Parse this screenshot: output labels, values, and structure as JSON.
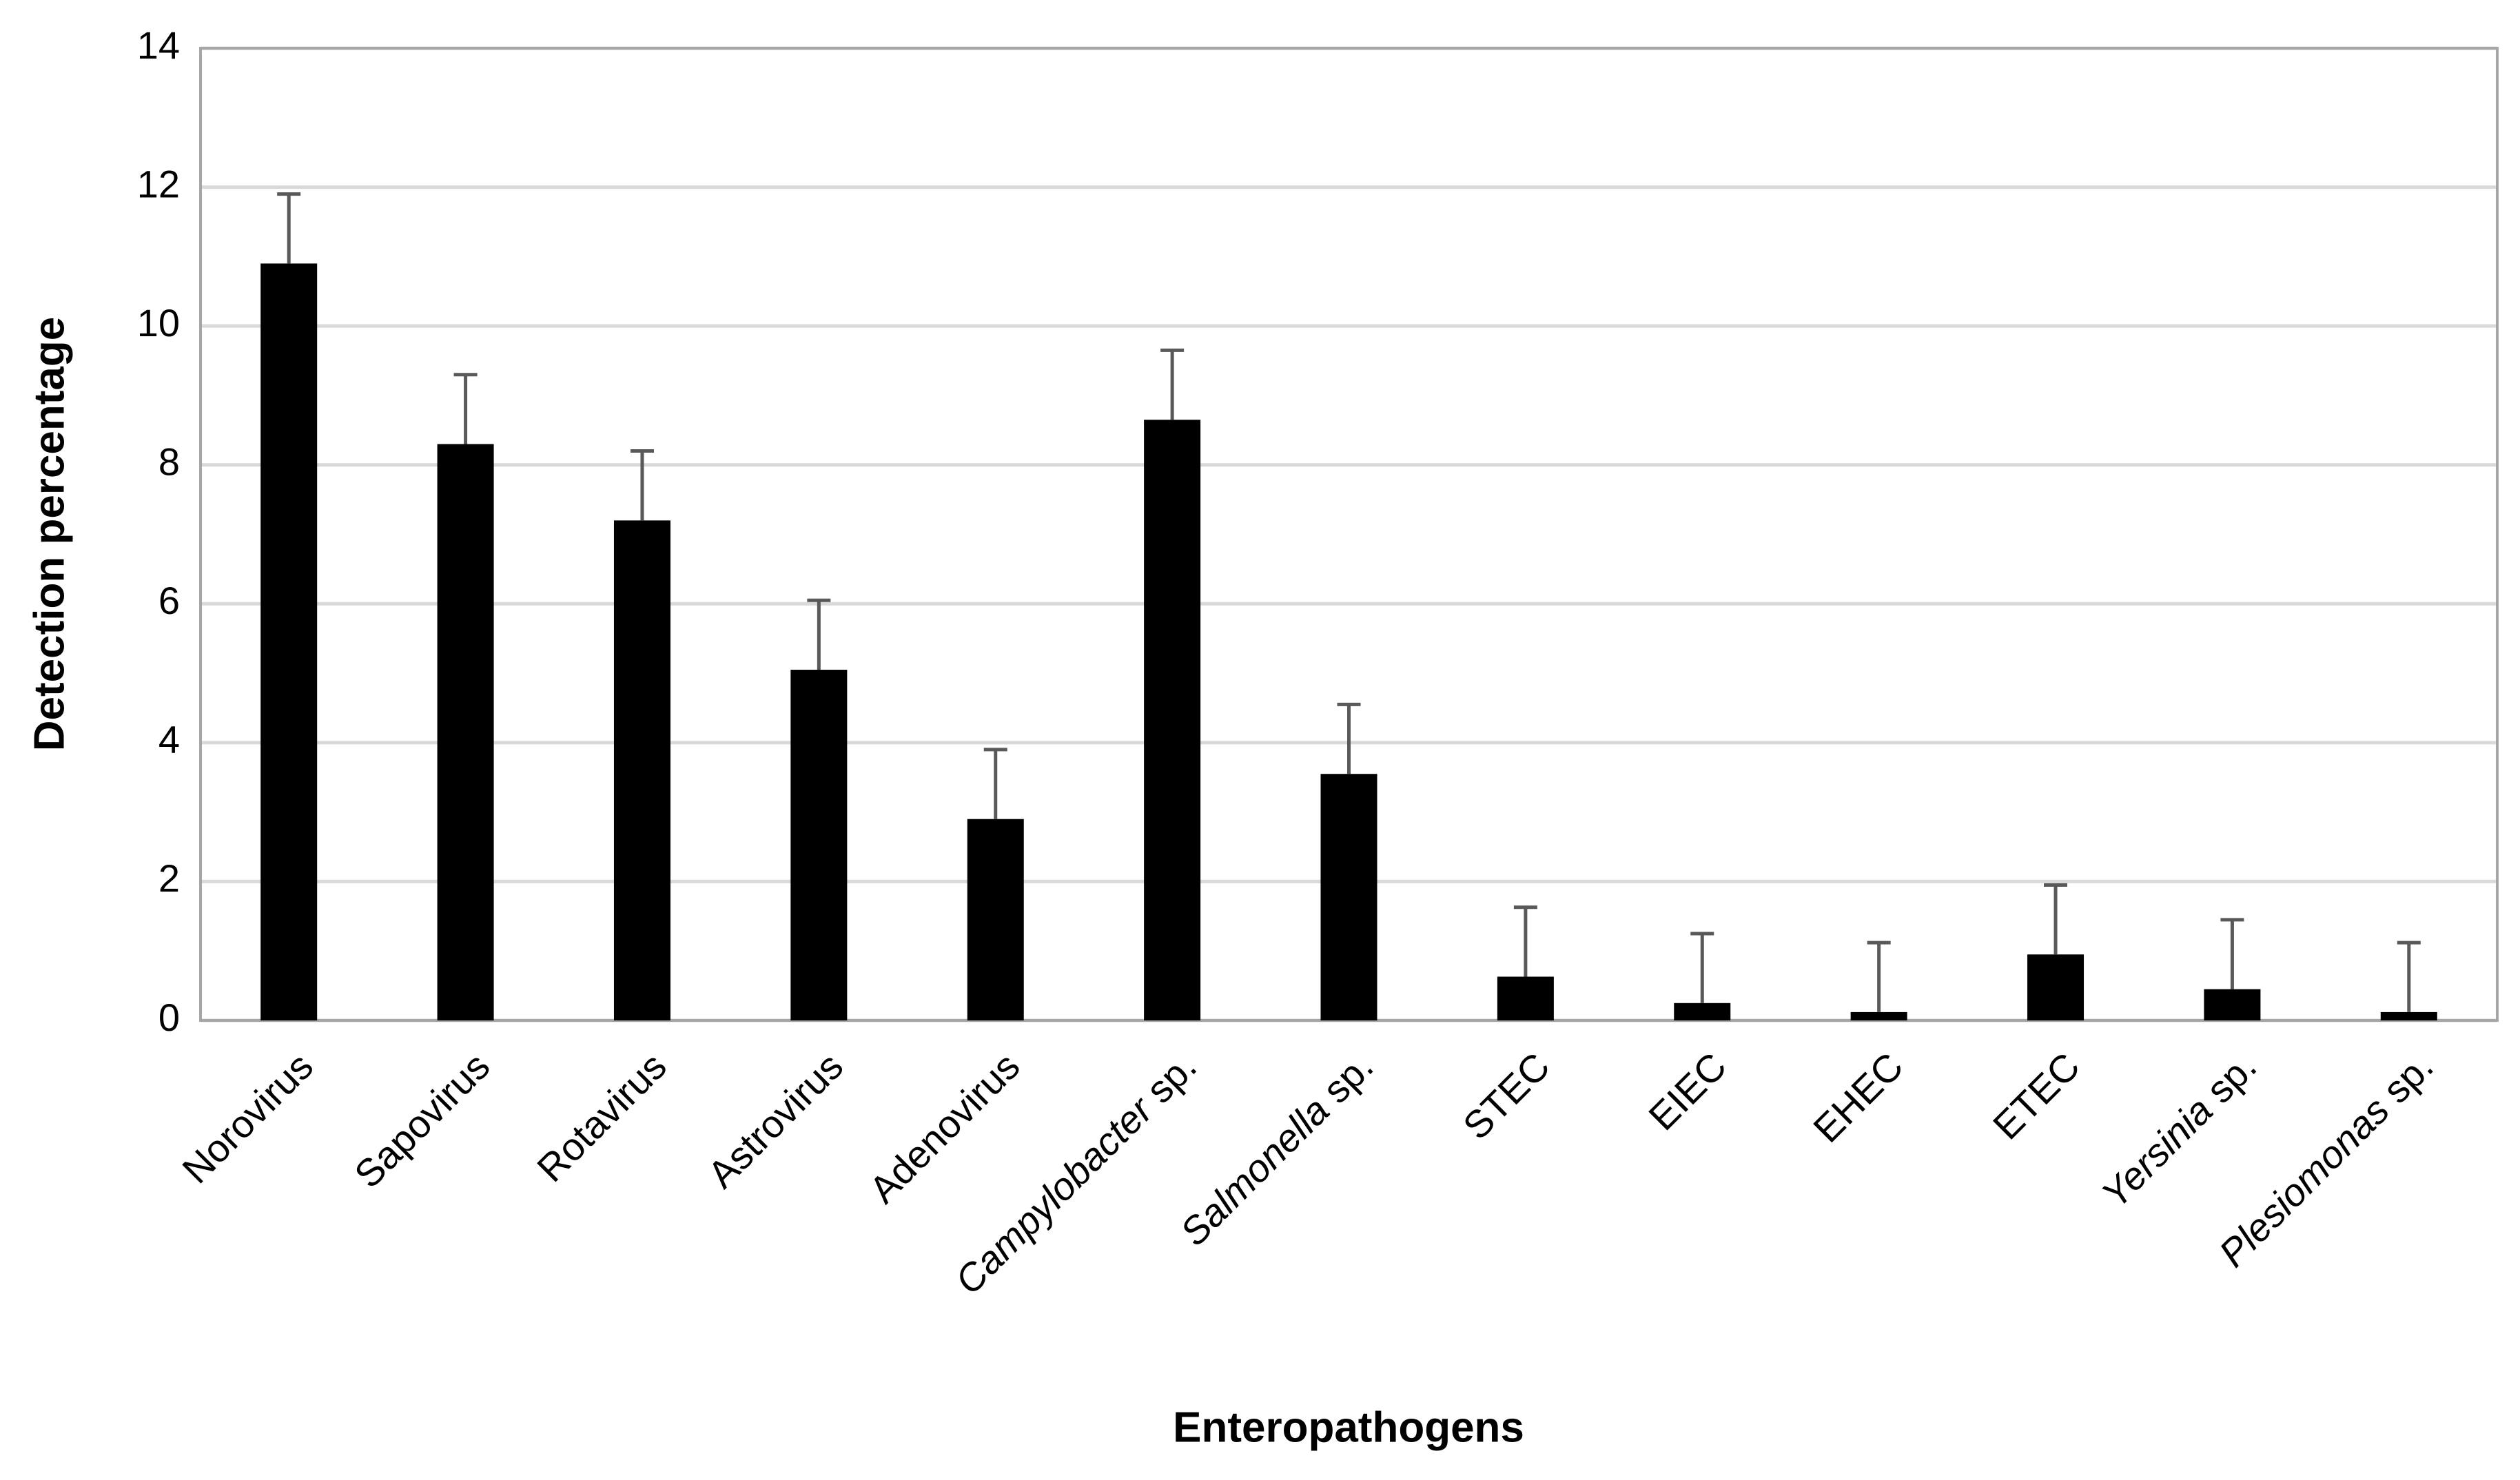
{
  "chart_data": {
    "type": "bar",
    "categories": [
      "Norovirus",
      "Sapovirus",
      "Rotavirus",
      "Astrovirus",
      "Adenovirus",
      "Campylobacter sp.",
      "Salmonella sp.",
      "STEC",
      "EIEC",
      "EHEC",
      "ETEC",
      "Yersinia sp.",
      "Plesiomonas sp."
    ],
    "values": [
      10.9,
      8.3,
      7.2,
      5.05,
      2.9,
      8.65,
      3.55,
      0.63,
      0.25,
      0.12,
      0.95,
      0.45,
      0.12
    ],
    "errors": [
      1,
      1,
      1,
      1,
      1,
      1,
      1,
      1,
      1,
      1,
      1,
      1,
      1
    ],
    "color": "#000000",
    "x_label": "Enteropathogens",
    "y_label": "Detection percentage",
    "ylim": [
      0,
      14
    ],
    "yticks": [
      0,
      2,
      4,
      6,
      8,
      10,
      12,
      14
    ],
    "grid": true
  }
}
